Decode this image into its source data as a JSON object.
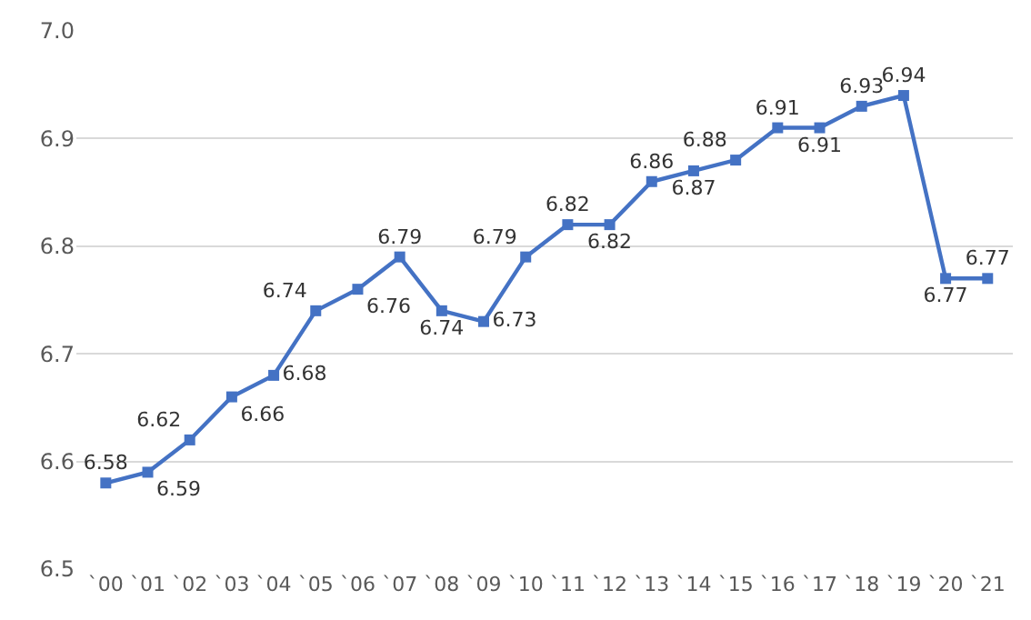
{
  "chart_data": {
    "type": "line",
    "categories": [
      "`00",
      "`01",
      "`02",
      "`03",
      "`04",
      "`05",
      "`06",
      "`07",
      "`08",
      "`09",
      "`10",
      "`11",
      "`12",
      "`13",
      "`14",
      "`15",
      "`16",
      "`17",
      "`18",
      "`19",
      "`20",
      "`21"
    ],
    "series": [
      {
        "color": "#4472c4",
        "values": [
          6.58,
          6.59,
          6.62,
          6.66,
          6.68,
          6.74,
          6.76,
          6.79,
          6.74,
          6.73,
          6.79,
          6.82,
          6.82,
          6.86,
          6.87,
          6.88,
          6.91,
          6.91,
          6.93,
          6.94,
          6.77,
          6.77
        ]
      }
    ],
    "ylim": [
      6.5,
      7.0
    ],
    "yticks": [
      6.5,
      6.6,
      6.7,
      6.8,
      6.9,
      {
        "value": 7,
        "label": "7.0"
      }
    ],
    "grid": "y",
    "legend": false,
    "marker": "square",
    "line_style": "solid",
    "data_labels": true
  }
}
